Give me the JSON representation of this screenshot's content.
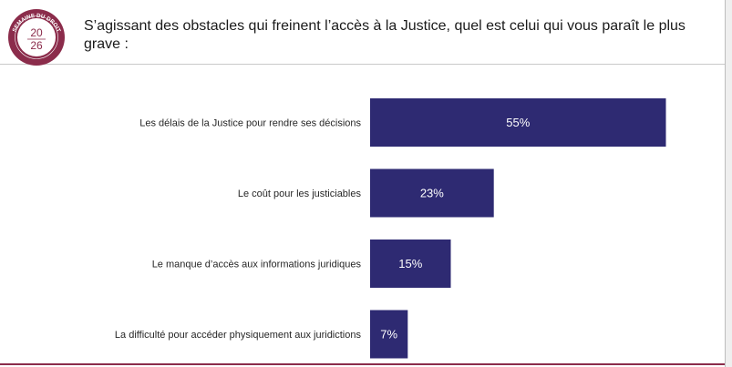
{
  "header": {
    "title": "S’agissant des obstacles qui freinent l’accès à la Justice, quel est celui qui vous paraît le plus grave :",
    "logo": {
      "text_top": "SEMAINE DU DROIT",
      "text_year_top": "20",
      "text_year_bottom": "26",
      "brand_color": "#8b2c4b"
    }
  },
  "chart_data": {
    "type": "bar",
    "orientation": "horizontal",
    "categories": [
      "Les délais de la Justice pour rendre ses décisions",
      "Le coût pour les justiciables",
      "Le manque d’accès aux informations juridiques",
      "La difficulté pour accéder physiquement aux juridictions"
    ],
    "values": [
      55,
      23,
      15,
      7
    ],
    "value_labels": [
      "55%",
      "23%",
      "15%",
      "7%"
    ],
    "unit": "%",
    "bar_color": "#2e2a72",
    "xlim": [
      0,
      100
    ],
    "grid": false,
    "legend": "none"
  }
}
